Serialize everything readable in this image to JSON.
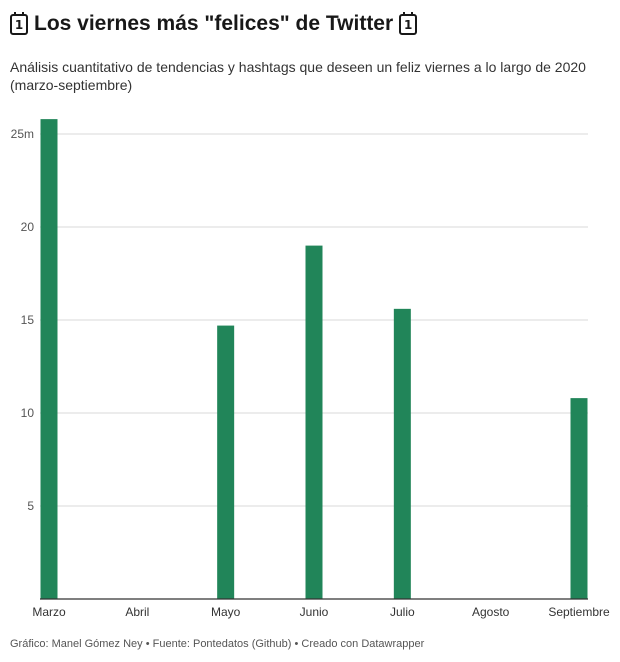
{
  "header": {
    "title": "Los viernes más \"felices\" de Twitter",
    "icon_glyph": "1",
    "subtitle": "Análisis cuantitativo de tendencias y hashtags que deseen un feliz viernes a lo largo de 2020 (marzo-septiembre)"
  },
  "icons": {
    "left": "calendar-icon",
    "right": "calendar-icon"
  },
  "footer": {
    "credit": "Gráfico: Manel Gómez Ney • Fuente: Pontedatos (Github) • Creado con Datawrapper"
  },
  "colors": {
    "bar": "#218559",
    "grid": "#d9d9d9",
    "axis": "#333333"
  },
  "chart_data": {
    "type": "bar",
    "categories": [
      "Marzo",
      "Abril",
      "Mayo",
      "Junio",
      "Julio",
      "Agosto",
      "Septiembre"
    ],
    "values": [
      25.8,
      0,
      14.7,
      19.0,
      15.6,
      0,
      10.8
    ],
    "ylim": [
      0,
      25
    ],
    "yticks": [
      5,
      10,
      15,
      20,
      25
    ],
    "ytick_labels": [
      "5",
      "10",
      "15",
      "20",
      "25m"
    ],
    "grid": true
  }
}
